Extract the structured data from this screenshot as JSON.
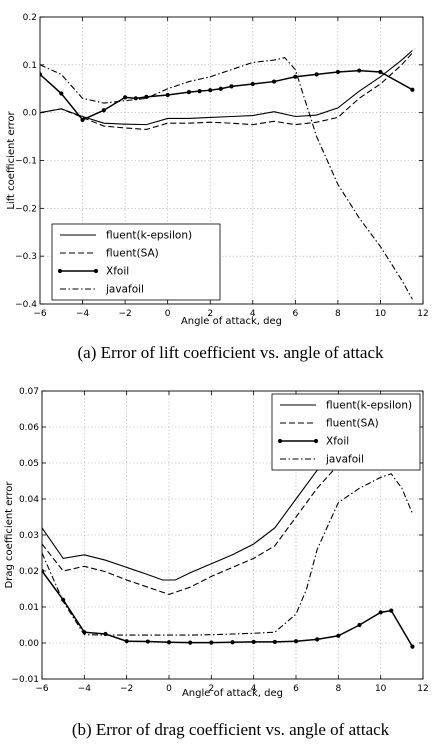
{
  "chart_data": [
    {
      "type": "line",
      "title": "",
      "caption": "(a) Error of lift coefficient vs. angle of attack",
      "xlabel": "Angle of attack, deg",
      "ylabel": "Lift coefficient error",
      "xlim": [
        -6,
        12
      ],
      "ylim": [
        -0.4,
        0.2
      ],
      "xticks": [
        -6,
        -4,
        -2,
        0,
        2,
        4,
        6,
        8,
        10,
        12
      ],
      "yticks": [
        -0.4,
        -0.3,
        -0.2,
        -0.1,
        0.0,
        0.1,
        0.2
      ],
      "ytick_labels": [
        "-0.4",
        "-0.3",
        "-0.2",
        "-0.1",
        "0.0",
        "0.1",
        "0.2"
      ],
      "grid": true,
      "legend_position": "lower-left",
      "series": [
        {
          "name": "fluent(k-epsilon)",
          "style": "solid",
          "marker": "none",
          "x": [
            -6,
            -5,
            -4,
            -3,
            -2,
            -1,
            0,
            1,
            2,
            3,
            4,
            5,
            6,
            7,
            8,
            9,
            10,
            11,
            11.5
          ],
          "y": [
            0.0,
            0.008,
            -0.008,
            -0.022,
            -0.024,
            -0.025,
            -0.012,
            -0.012,
            -0.01,
            -0.008,
            -0.006,
            0.002,
            -0.008,
            -0.005,
            0.01,
            0.045,
            0.075,
            0.11,
            0.13
          ]
        },
        {
          "name": "fluent(SA)",
          "style": "dashed",
          "marker": "none",
          "x": [
            -6,
            -5,
            -4,
            -3,
            -2,
            -1,
            0,
            1,
            2,
            3,
            4,
            5,
            6,
            7,
            8,
            9,
            10,
            11,
            11.5
          ],
          "y": [
            0.0,
            0.008,
            -0.01,
            -0.028,
            -0.032,
            -0.035,
            -0.022,
            -0.022,
            -0.02,
            -0.022,
            -0.025,
            -0.018,
            -0.025,
            -0.02,
            -0.01,
            0.03,
            0.06,
            0.1,
            0.125
          ]
        },
        {
          "name": "Xfoil",
          "style": "solid",
          "marker": "dot",
          "x": [
            -6,
            -5,
            -4,
            -3,
            -2,
            -1.5,
            -1,
            0,
            1,
            1.5,
            2,
            2.5,
            3,
            4,
            5,
            6,
            7,
            8,
            9,
            10,
            11.5
          ],
          "y": [
            0.08,
            0.04,
            -0.015,
            0.005,
            0.032,
            0.03,
            0.033,
            0.037,
            0.043,
            0.045,
            0.047,
            0.05,
            0.055,
            0.06,
            0.065,
            0.075,
            0.08,
            0.085,
            0.088,
            0.085,
            0.048
          ]
        },
        {
          "name": "javafoil",
          "style": "dashdot",
          "marker": "none",
          "x": [
            -6,
            -5,
            -4,
            -3,
            -2,
            -1,
            0,
            1,
            2,
            3,
            4,
            5,
            5.5,
            6,
            7,
            8,
            9,
            10,
            11,
            11.5
          ],
          "y": [
            0.1,
            0.08,
            0.03,
            0.02,
            0.025,
            0.03,
            0.05,
            0.065,
            0.075,
            0.09,
            0.105,
            0.11,
            0.115,
            0.09,
            -0.05,
            -0.15,
            -0.22,
            -0.28,
            -0.35,
            -0.39
          ]
        }
      ]
    },
    {
      "type": "line",
      "title": "",
      "caption": "(b) Error of drag coefficient vs. angle of attack",
      "xlabel": "Angle of attack, deg",
      "ylabel": "Drag coefficient error",
      "xlim": [
        -6,
        12
      ],
      "ylim": [
        -0.01,
        0.07
      ],
      "xticks": [
        -6,
        -4,
        -2,
        0,
        2,
        4,
        6,
        8,
        10,
        12
      ],
      "yticks": [
        -0.01,
        0.0,
        0.01,
        0.02,
        0.03,
        0.04,
        0.05,
        0.06,
        0.07
      ],
      "ytick_labels": [
        "-0.01",
        "0.00",
        "0.01",
        "0.02",
        "0.03",
        "0.04",
        "0.05",
        "0.06",
        "0.07"
      ],
      "grid": true,
      "legend_position": "upper-right",
      "series": [
        {
          "name": "fluent(k-epsilon)",
          "style": "solid",
          "marker": "none",
          "x": [
            -6,
            -5,
            -4,
            -3,
            -2,
            -1,
            -0.3,
            0.3,
            1,
            2,
            3,
            4,
            5,
            6,
            7,
            8,
            9,
            10,
            10.5,
            11,
            11.5
          ],
          "y": [
            0.032,
            0.0235,
            0.0245,
            0.023,
            0.021,
            0.019,
            0.0175,
            0.0175,
            0.0195,
            0.022,
            0.0245,
            0.0275,
            0.032,
            0.04,
            0.048,
            0.054,
            0.0585,
            0.063,
            0.0648,
            0.0625,
            0.06
          ]
        },
        {
          "name": "fluent(SA)",
          "style": "dashed",
          "marker": "none",
          "x": [
            -6,
            -5,
            -4,
            -3,
            -2,
            -1,
            0,
            1,
            2,
            3,
            4,
            5,
            6,
            7,
            8,
            9,
            10,
            10.5,
            11,
            11.5
          ],
          "y": [
            0.0275,
            0.02,
            0.0213,
            0.0198,
            0.0175,
            0.0155,
            0.0135,
            0.0155,
            0.0185,
            0.021,
            0.0235,
            0.027,
            0.035,
            0.043,
            0.0495,
            0.0545,
            0.059,
            0.0595,
            0.058,
            0.055
          ]
        },
        {
          "name": "Xfoil",
          "style": "solid",
          "marker": "dot",
          "x": [
            -6,
            -5,
            -4,
            -3,
            -2,
            -1,
            0,
            1,
            2,
            3,
            4,
            5,
            6,
            7,
            8,
            9,
            10,
            10.5,
            11.5
          ],
          "y": [
            0.02,
            0.012,
            0.003,
            0.0025,
            0.0005,
            0.0004,
            0.0002,
            0.0001,
            0.0001,
            0.0002,
            0.0003,
            0.0003,
            0.0005,
            0.001,
            0.002,
            0.005,
            0.0085,
            0.009,
            -0.001
          ]
        },
        {
          "name": "javafoil",
          "style": "dashdot",
          "marker": "none",
          "x": [
            -6,
            -5,
            -4,
            -3,
            -2,
            -1,
            0,
            1,
            2,
            3,
            4,
            5,
            6,
            6.5,
            7,
            8,
            9,
            10,
            10.5,
            11,
            11.5
          ],
          "y": [
            0.025,
            0.0115,
            0.0023,
            0.0022,
            0.0022,
            0.0022,
            0.0022,
            0.0022,
            0.0023,
            0.0025,
            0.0027,
            0.003,
            0.008,
            0.015,
            0.026,
            0.039,
            0.043,
            0.046,
            0.047,
            0.043,
            0.036
          ]
        }
      ]
    }
  ]
}
